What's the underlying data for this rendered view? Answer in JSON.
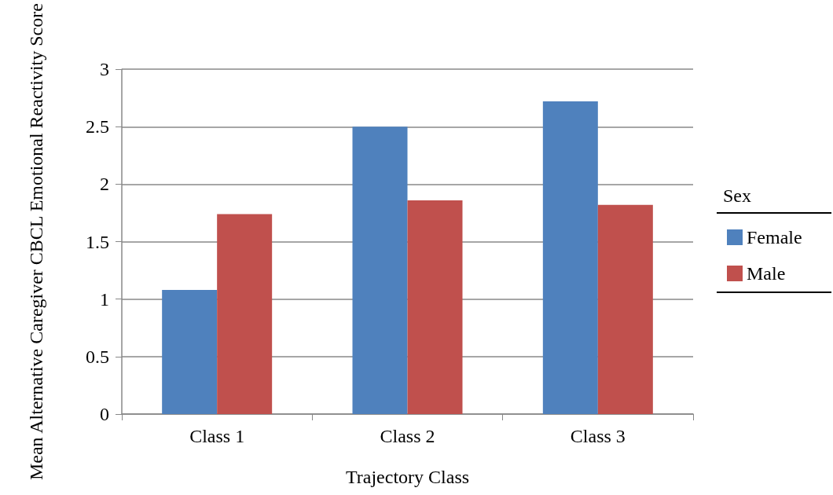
{
  "chart_data": {
    "type": "bar",
    "xlabel": "Trajectory Class",
    "ylabel": "Mean Alternative Caregiver CBCL Emotional Reactivity Score",
    "legend_title": "Sex",
    "categories": [
      "Class 1",
      "Class 2",
      "Class 3"
    ],
    "series": [
      {
        "name": "Female",
        "color": "#4f81bd",
        "values": [
          1.08,
          2.5,
          2.72
        ]
      },
      {
        "name": "Male",
        "color": "#c0504d",
        "values": [
          1.74,
          1.86,
          1.82
        ]
      }
    ],
    "ylim": [
      0,
      3
    ],
    "yticks": [
      0,
      0.5,
      1,
      1.5,
      2,
      2.5,
      3
    ],
    "grid": "y",
    "legend": "right"
  }
}
